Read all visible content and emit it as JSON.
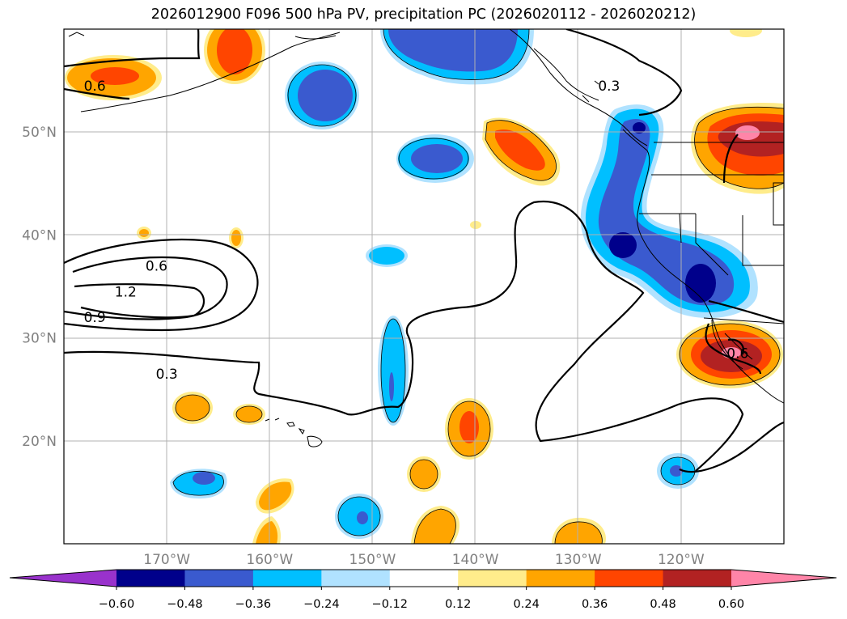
{
  "title": "2026012900 F096 500 hPa PV, precipitation PC (2026020112 - 2026020212)",
  "map": {
    "lon_range": [
      -180,
      -110
    ],
    "lat_range": [
      10,
      60
    ],
    "lon_ticks": [
      {
        "value": -170,
        "label": "170°W"
      },
      {
        "value": -160,
        "label": "160°W"
      },
      {
        "value": -150,
        "label": "150°W"
      },
      {
        "value": -140,
        "label": "140°W"
      },
      {
        "value": -130,
        "label": "130°W"
      },
      {
        "value": -120,
        "label": "120°W"
      }
    ],
    "lat_ticks": [
      {
        "value": 20,
        "label": "20°N"
      },
      {
        "value": 30,
        "label": "30°N"
      },
      {
        "value": 40,
        "label": "40°N"
      },
      {
        "value": 50,
        "label": "50°N"
      }
    ],
    "grid_color": "#b0b0b0",
    "pv_contour_labels": [
      {
        "text": "0.6",
        "lon": -171,
        "lat": 37
      },
      {
        "text": "1.2",
        "lon": -174,
        "lat": 34.5
      },
      {
        "text": "0.9",
        "lon": -177,
        "lat": 32
      },
      {
        "text": "0.3",
        "lon": -170,
        "lat": 26.5
      },
      {
        "text": "0.6",
        "lon": -177,
        "lat": 54.5
      },
      {
        "text": "0.3",
        "lon": -127,
        "lat": 54.5
      },
      {
        "text": "0.6",
        "lon": -114.5,
        "lat": 28.5
      }
    ]
  },
  "colorbar": {
    "ticks": [
      "−0.60",
      "−0.48",
      "−0.36",
      "−0.24",
      "−0.12",
      "0.12",
      "0.24",
      "0.36",
      "0.48",
      "0.60"
    ],
    "colors": [
      "#9932cc",
      "#00008b",
      "#3a5acf",
      "#00bfff",
      "#b0e2ff",
      "#ffffff",
      "#ffec8b",
      "#ffa500",
      "#ff4500",
      "#b22222",
      "#ff85a8"
    ]
  }
}
